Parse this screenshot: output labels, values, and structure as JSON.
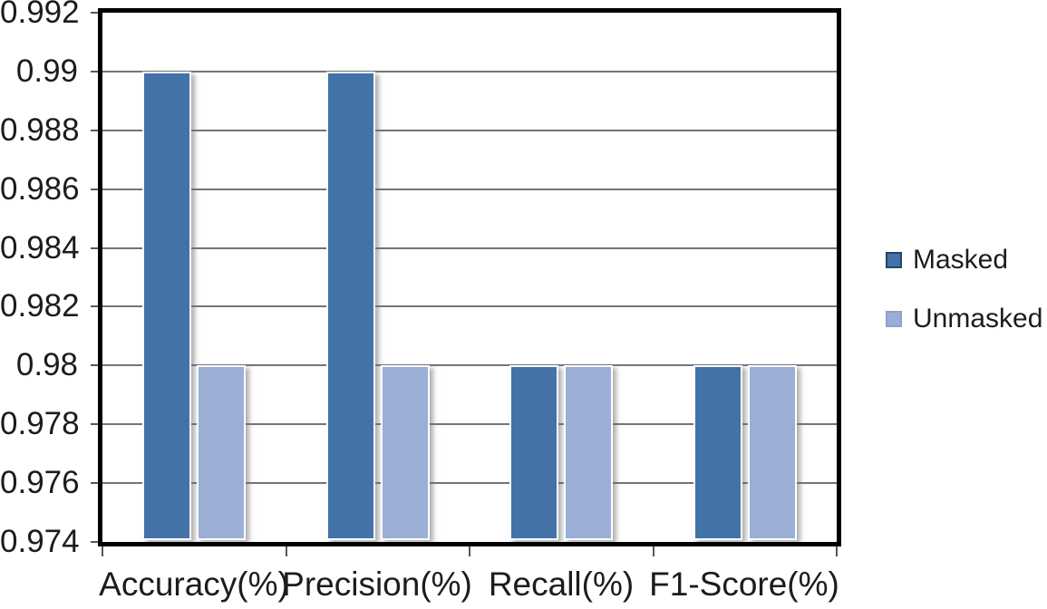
{
  "chart_data": {
    "type": "bar",
    "title": "",
    "xlabel": "",
    "ylabel": "",
    "categories": [
      "Accuracy(%)",
      "Precision(%)",
      "Recall(%)",
      "F1-Score(%)"
    ],
    "series": [
      {
        "name": "Masked",
        "values": [
          0.99,
          0.99,
          0.98,
          0.98
        ],
        "color": "#4272A8",
        "swatch_border": "#24466B"
      },
      {
        "name": "Unmasked",
        "values": [
          0.98,
          0.98,
          0.98,
          0.98
        ],
        "color": "#9AAED6",
        "swatch_border": "#8FA2C8"
      }
    ],
    "ylim": [
      0.974,
      0.992
    ],
    "y_tick_step": 0.002,
    "y_tick_labels": [
      "0.974",
      "0.976",
      "0.978",
      "0.98",
      "0.982",
      "0.984",
      "0.986",
      "0.988",
      "0.99",
      "0.992"
    ],
    "grid": true,
    "legend_position": "right",
    "colors": {
      "axis": "#000000",
      "gridline": "#757575",
      "tick": "#595959",
      "text": "#1c1c1c",
      "background": "#ffffff"
    }
  }
}
